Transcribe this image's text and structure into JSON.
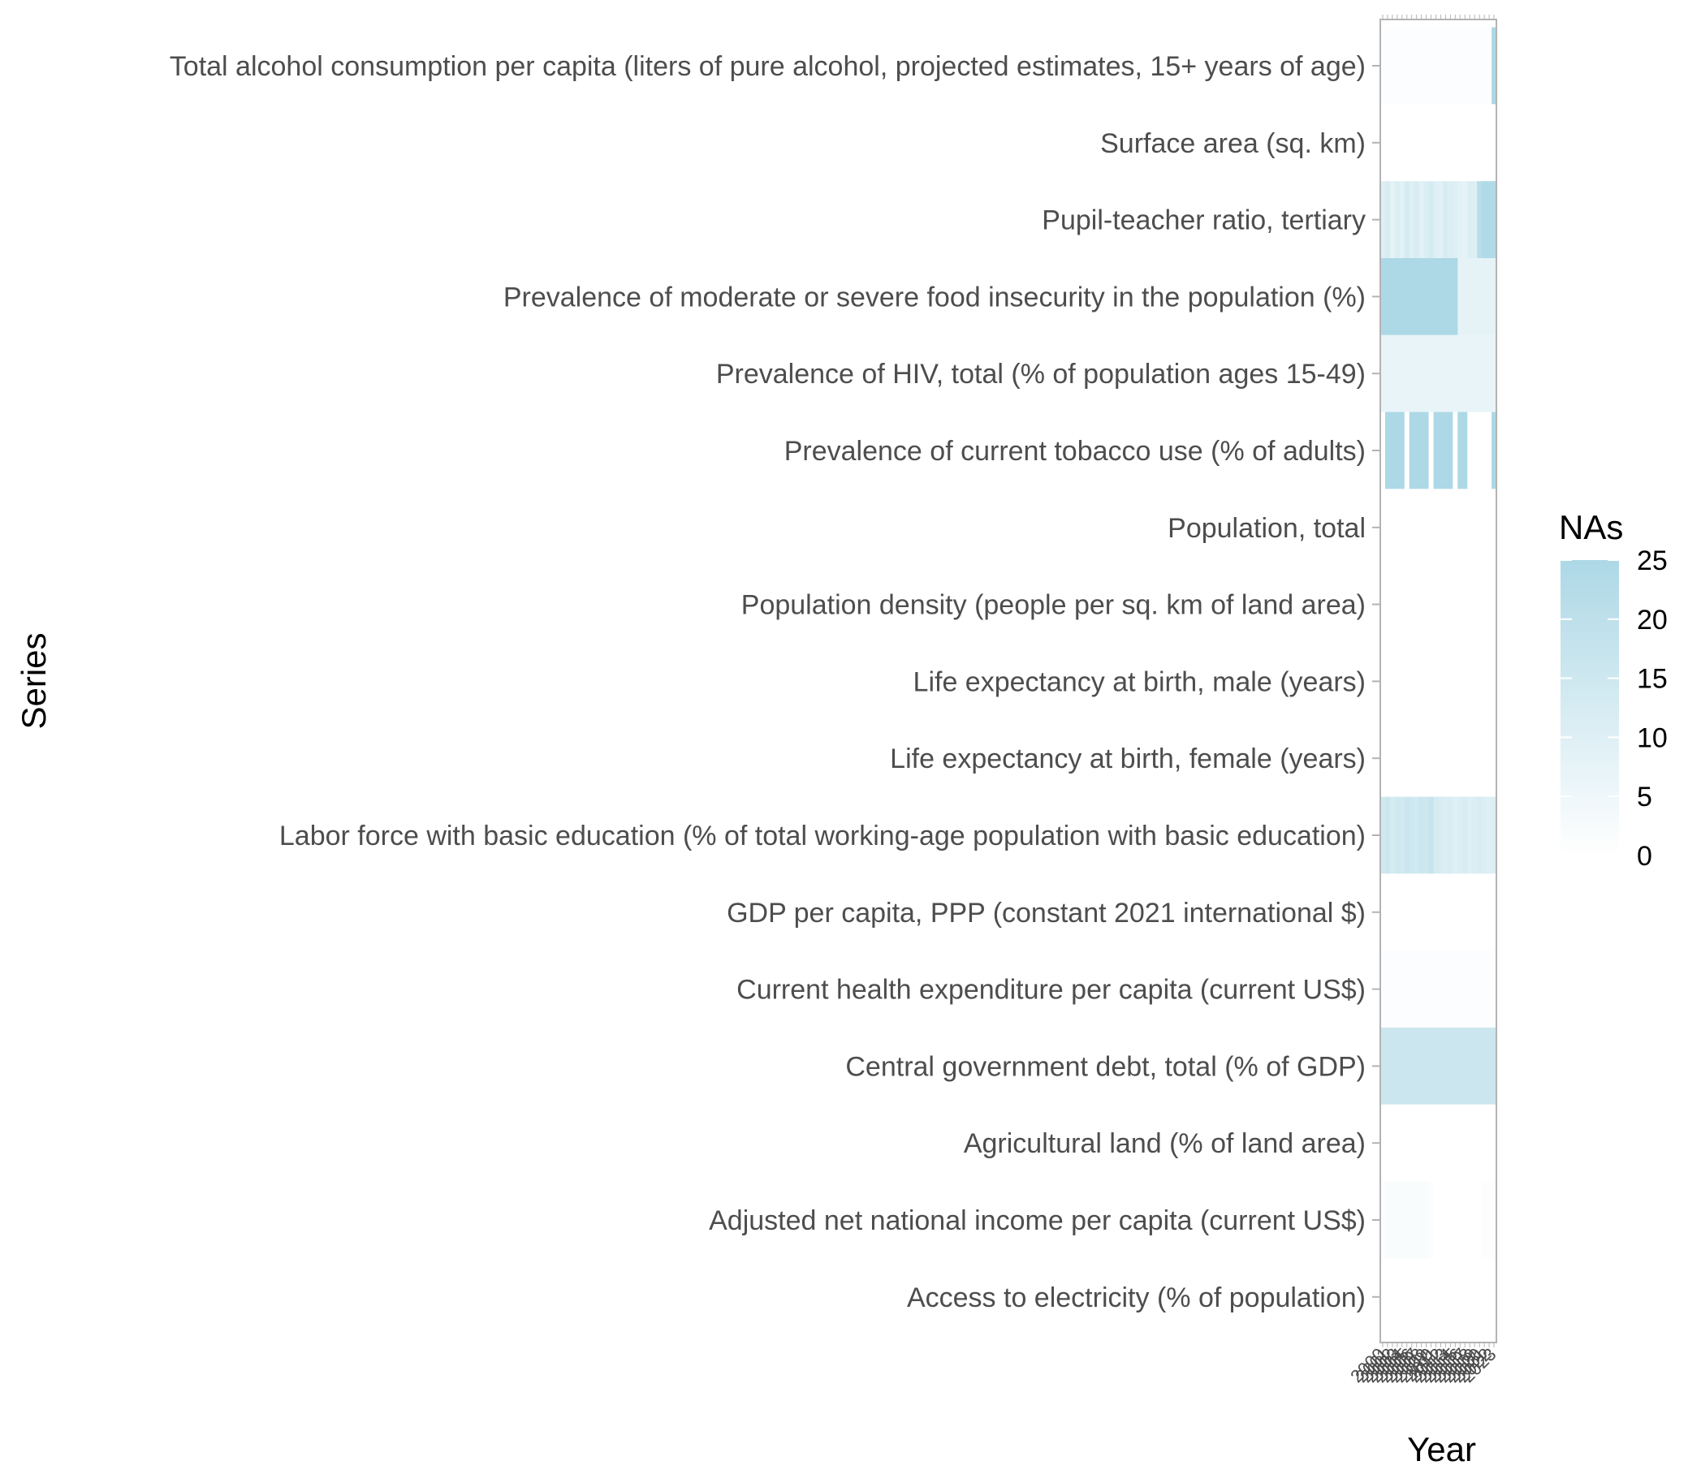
{
  "chart_data": {
    "type": "heatmap",
    "title": "",
    "xlabel": "Year",
    "ylabel": "Series",
    "x": [
      "2000",
      "2001",
      "2002",
      "2003",
      "2004",
      "2005",
      "2006",
      "2007",
      "2008",
      "2009",
      "2010",
      "2011",
      "2012",
      "2013",
      "2014",
      "2015",
      "2016",
      "2017",
      "2018",
      "2019",
      "2020",
      "2021",
      "2022",
      "2023"
    ],
    "x_tick_labels_legible": false,
    "y": [
      "Total alcohol consumption per capita (liters of pure alcohol, projected estimates, 15+ years of age)",
      "Surface area (sq. km)",
      "Pupil-teacher ratio, tertiary",
      "Prevalence of moderate or severe food insecurity in the population (%)",
      "Prevalence of HIV, total (% of population ages 15-49)",
      "Prevalence of current tobacco use (% of adults)",
      "Population, total",
      "Population density (people per sq. km of land area)",
      "Life expectancy at birth, male (years)",
      "Life expectancy at birth, female (years)",
      "Labor force with basic education (% of total working-age population with basic education)",
      "GDP per capita, PPP (constant 2021 international $)",
      "Current health expenditure per capita (current US$)",
      "Central government debt, total (% of GDP)",
      "Agricultural land (% of land area)",
      "Adjusted net national income per capita (current US$)",
      "Access to electricity (% of population)"
    ],
    "values": [
      [
        1,
        1,
        1,
        1,
        1,
        1,
        1,
        1,
        1,
        1,
        1,
        1,
        1,
        1,
        1,
        1,
        1,
        1,
        1,
        1,
        1,
        1,
        1,
        25
      ],
      [
        0,
        0,
        0,
        0,
        0,
        0,
        0,
        0,
        0,
        0,
        0,
        0,
        0,
        0,
        0,
        0,
        0,
        0,
        0,
        0,
        0,
        0,
        0,
        0
      ],
      [
        10,
        12,
        8,
        11,
        9,
        13,
        10,
        12,
        9,
        11,
        13,
        10,
        9,
        12,
        11,
        10,
        9,
        8,
        11,
        10,
        22,
        24,
        24,
        24
      ],
      [
        25,
        25,
        25,
        25,
        25,
        25,
        25,
        25,
        25,
        25,
        25,
        25,
        25,
        25,
        25,
        25,
        8,
        8,
        8,
        8,
        8,
        8,
        8,
        8
      ],
      [
        7,
        7,
        7,
        7,
        7,
        7,
        7,
        7,
        7,
        7,
        7,
        7,
        7,
        7,
        7,
        7,
        7,
        7,
        7,
        7,
        7,
        7,
        7,
        7
      ],
      [
        0,
        25,
        25,
        25,
        25,
        0,
        25,
        25,
        25,
        25,
        0,
        25,
        25,
        25,
        25,
        0,
        25,
        25,
        0,
        0,
        0,
        0,
        0,
        25
      ],
      [
        0,
        0,
        0,
        0,
        0,
        0,
        0,
        0,
        0,
        0,
        0,
        0,
        0,
        0,
        0,
        0,
        0,
        0,
        0,
        0,
        0,
        0,
        0,
        0
      ],
      [
        0,
        0,
        0,
        0,
        0,
        0,
        0,
        0,
        0,
        0,
        0,
        0,
        0,
        0,
        0,
        0,
        0,
        0,
        0,
        0,
        0,
        0,
        0,
        0
      ],
      [
        0,
        0,
        0,
        0,
        0,
        0,
        0,
        0,
        0,
        0,
        0,
        0,
        0,
        0,
        0,
        0,
        0,
        0,
        0,
        0,
        0,
        0,
        0,
        0
      ],
      [
        0,
        0,
        0,
        0,
        0,
        0,
        0,
        0,
        0,
        0,
        0,
        0,
        0,
        0,
        0,
        0,
        0,
        0,
        0,
        0,
        0,
        0,
        0,
        0
      ],
      [
        14,
        16,
        13,
        15,
        14,
        16,
        15,
        14,
        16,
        15,
        17,
        13,
        12,
        11,
        12,
        10,
        11,
        12,
        10,
        11,
        12,
        11,
        10,
        11
      ],
      [
        0,
        0,
        0,
        0,
        0,
        0,
        0,
        0,
        0,
        0,
        0,
        0,
        0,
        0,
        0,
        0,
        0,
        0,
        0,
        0,
        0,
        0,
        0,
        0
      ],
      [
        1,
        1,
        1,
        1,
        1,
        1,
        1,
        1,
        1,
        1,
        1,
        1,
        1,
        1,
        1,
        1,
        1,
        1,
        1,
        1,
        1,
        1,
        1,
        1
      ],
      [
        16,
        16,
        16,
        16,
        16,
        16,
        16,
        16,
        16,
        16,
        16,
        16,
        16,
        16,
        16,
        16,
        16,
        16,
        16,
        16,
        16,
        16,
        16,
        16
      ],
      [
        0,
        0,
        0,
        0,
        0,
        0,
        0,
        0,
        0,
        0,
        0,
        0,
        0,
        0,
        0,
        0,
        0,
        0,
        0,
        0,
        0,
        0,
        0,
        0
      ],
      [
        1,
        2,
        2,
        2,
        2,
        2,
        2,
        2,
        2,
        2,
        1,
        0,
        0,
        0,
        0,
        0,
        0,
        0,
        0,
        0,
        0,
        1,
        1,
        1
      ],
      [
        0,
        0,
        0,
        0,
        0,
        0,
        0,
        0,
        0,
        0,
        0,
        0,
        0,
        0,
        0,
        0,
        0,
        0,
        0,
        0,
        0,
        0,
        0,
        0
      ]
    ],
    "legend": {
      "title": "NAs",
      "position": "right",
      "range": [
        0,
        25
      ],
      "breaks": [
        "25",
        "20",
        "15",
        "10",
        "5",
        "0"
      ],
      "low_color": "#ffffff",
      "high_color": "#add8e6"
    },
    "panel_border_color": "#b3b3b3",
    "grid": false
  }
}
